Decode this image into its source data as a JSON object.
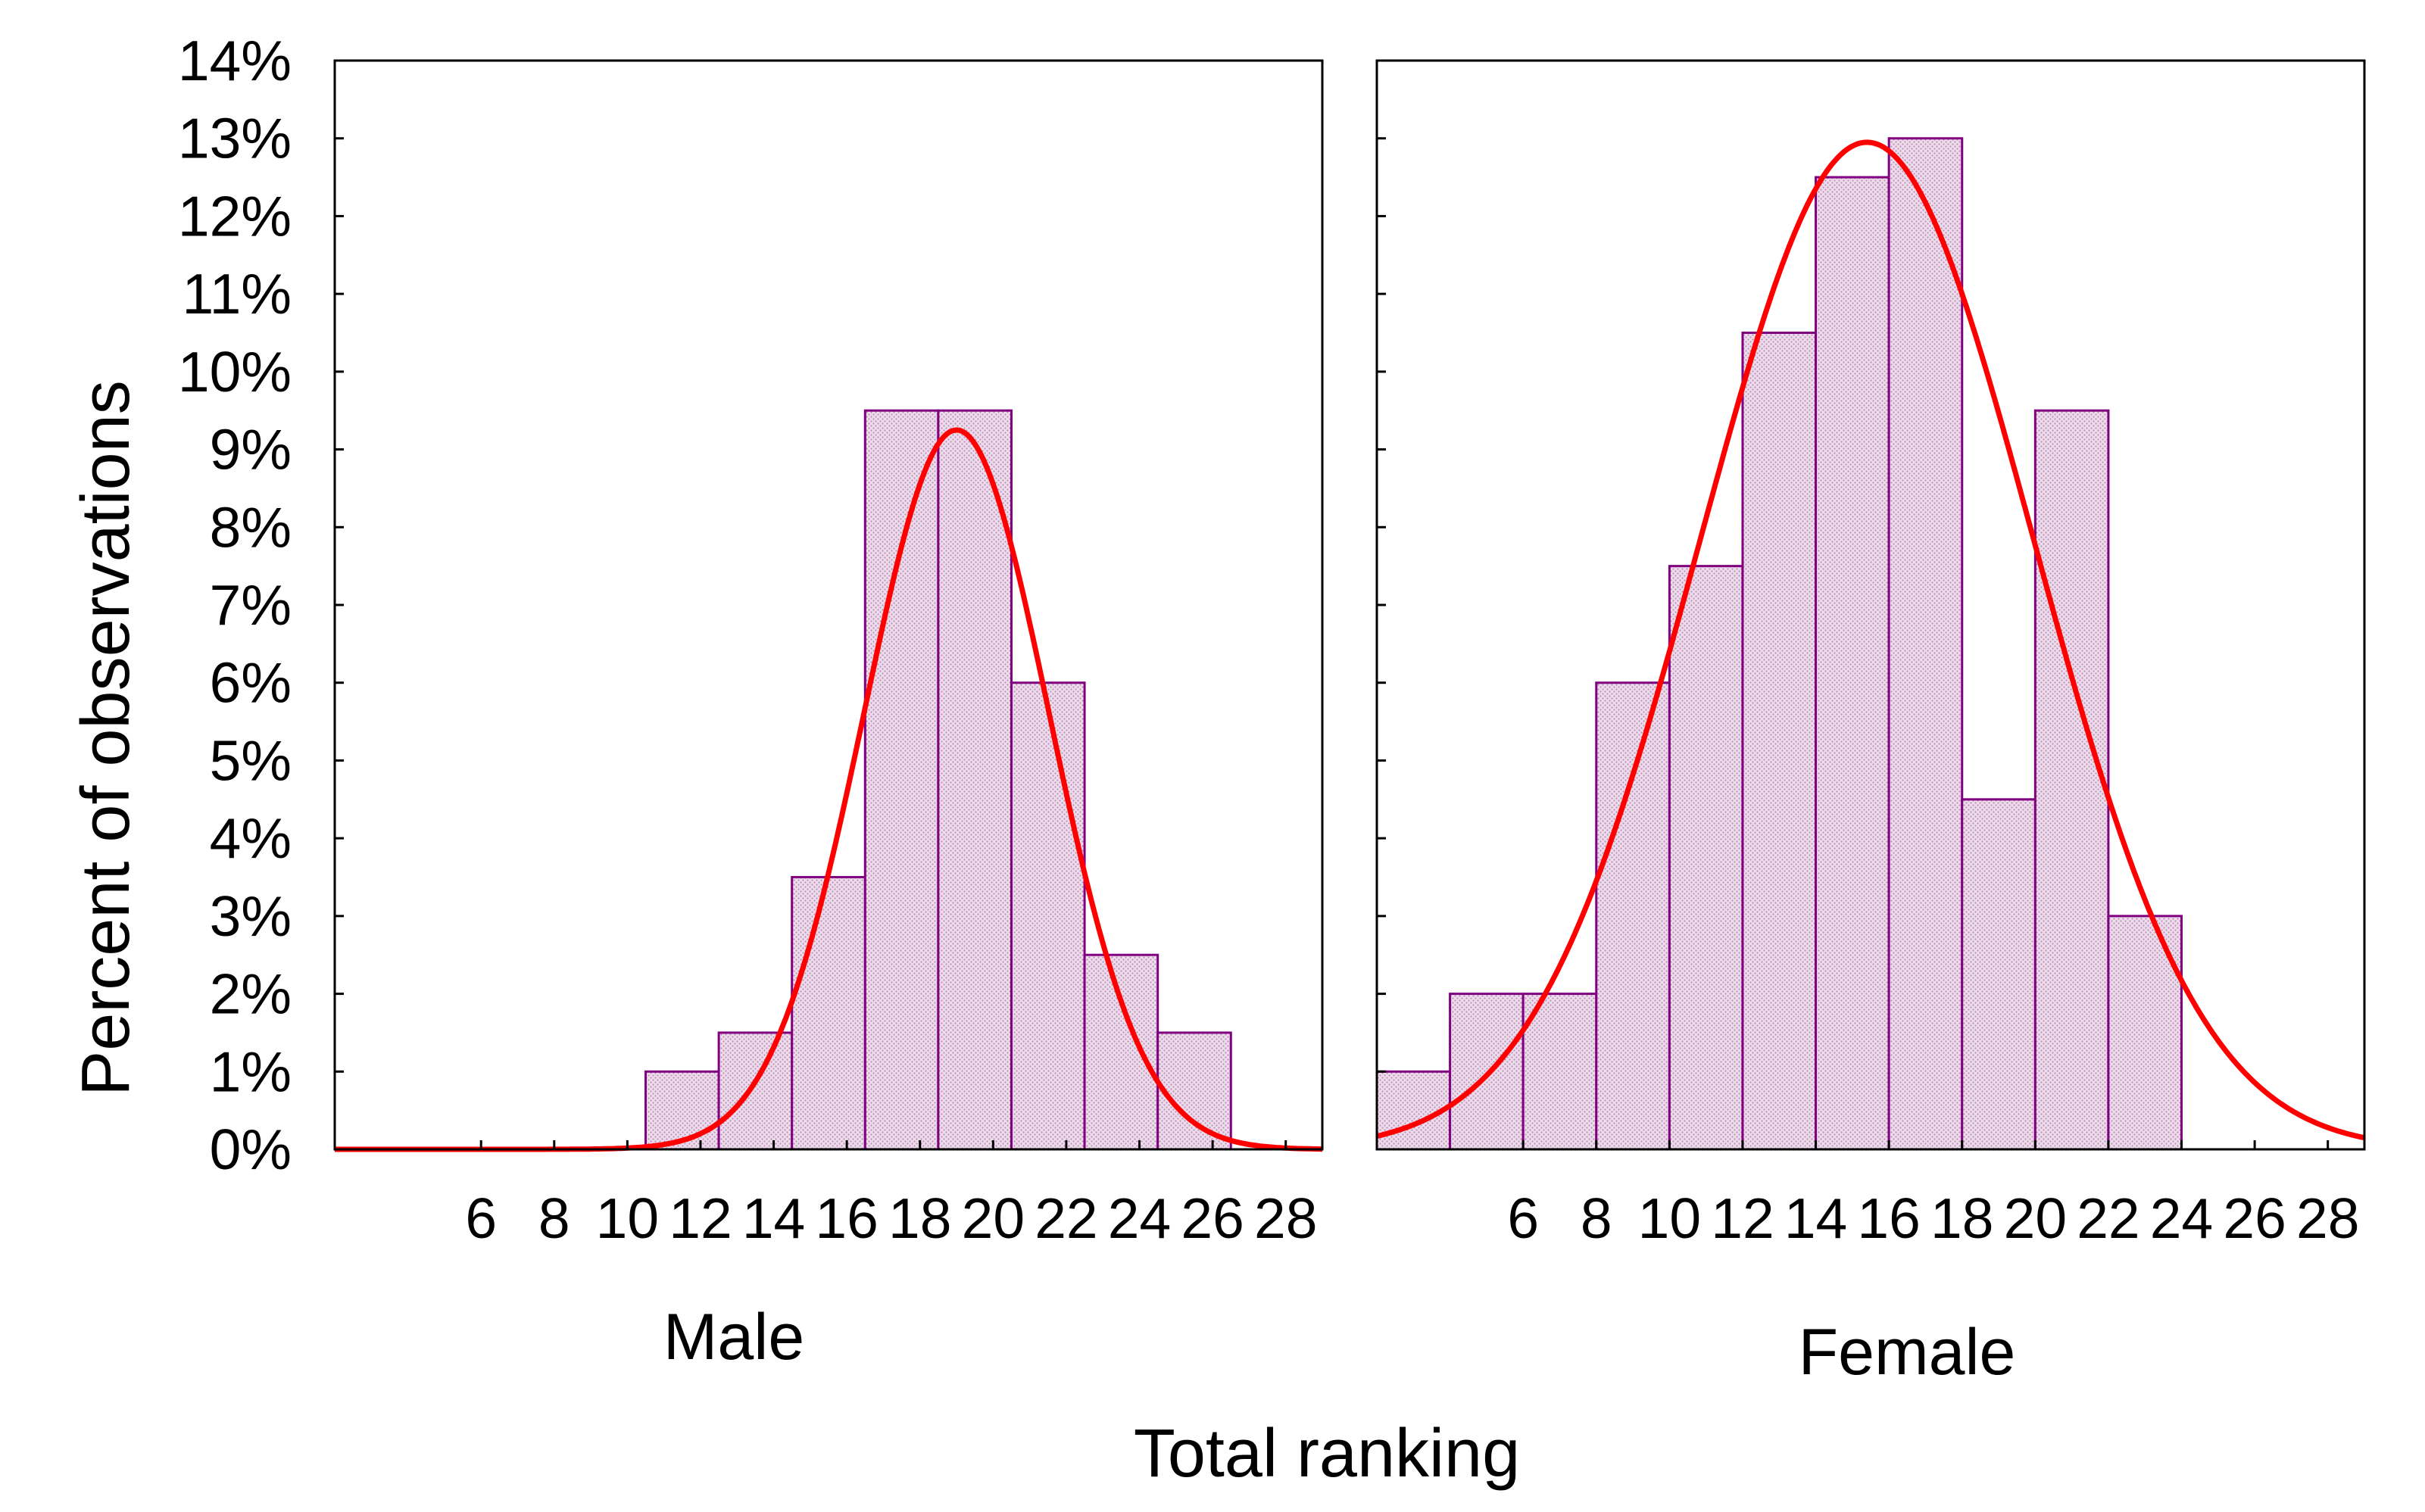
{
  "chart_data": {
    "type": "bar",
    "title": "",
    "ylabel": "Percent of observations",
    "xlabel": "Total ranking",
    "ylim": [
      0,
      14
    ],
    "y_ticks": [
      0,
      1,
      2,
      3,
      4,
      5,
      6,
      7,
      8,
      9,
      10,
      11,
      12,
      13,
      14
    ],
    "y_tick_labels": [
      "0%",
      "1%",
      "2%",
      "3%",
      "4%",
      "5%",
      "6%",
      "7%",
      "8%",
      "9%",
      "10%",
      "11%",
      "12%",
      "13%",
      "14%"
    ],
    "xlim": [
      2,
      29
    ],
    "x_ticks": [
      6,
      8,
      10,
      12,
      14,
      16,
      18,
      20,
      22,
      24,
      26,
      28
    ],
    "x_tick_labels": [
      "6",
      "8",
      "10",
      "12",
      "14",
      "16",
      "18",
      "20",
      "22",
      "24",
      "26",
      "28"
    ],
    "bin_width": 2,
    "colors": {
      "bar_fill": "#eedcec",
      "bar_stipple": "#b990b4",
      "bar_edge": "#800080",
      "fit_curve": "#ff0000",
      "axis": "#000000"
    },
    "panels": [
      {
        "label": "Male",
        "bins": [
          {
            "start": 10.5,
            "value": 1.0
          },
          {
            "start": 12.5,
            "value": 1.5
          },
          {
            "start": 14.5,
            "value": 3.5
          },
          {
            "start": 16.5,
            "value": 9.5
          },
          {
            "start": 18.5,
            "value": 9.5
          },
          {
            "start": 20.5,
            "value": 6.0
          },
          {
            "start": 22.5,
            "value": 2.5
          },
          {
            "start": 24.5,
            "value": 1.5
          }
        ],
        "fit": {
          "type": "normal",
          "mean": 19.0,
          "sd": 2.53,
          "peak": 9.25
        }
      },
      {
        "label": "Female",
        "bins": [
          {
            "start": 2,
            "value": 1.0
          },
          {
            "start": 4,
            "value": 2.0
          },
          {
            "start": 6,
            "value": 2.0
          },
          {
            "start": 8,
            "value": 6.0
          },
          {
            "start": 10,
            "value": 7.5
          },
          {
            "start": 12,
            "value": 10.5
          },
          {
            "start": 14,
            "value": 12.5
          },
          {
            "start": 16,
            "value": 13.0
          },
          {
            "start": 18,
            "value": 4.5
          },
          {
            "start": 20,
            "value": 9.5
          },
          {
            "start": 22,
            "value": 3.0
          }
        ],
        "fit": {
          "type": "normal",
          "mean": 15.4,
          "sd": 4.55,
          "peak": 12.95
        }
      }
    ]
  }
}
